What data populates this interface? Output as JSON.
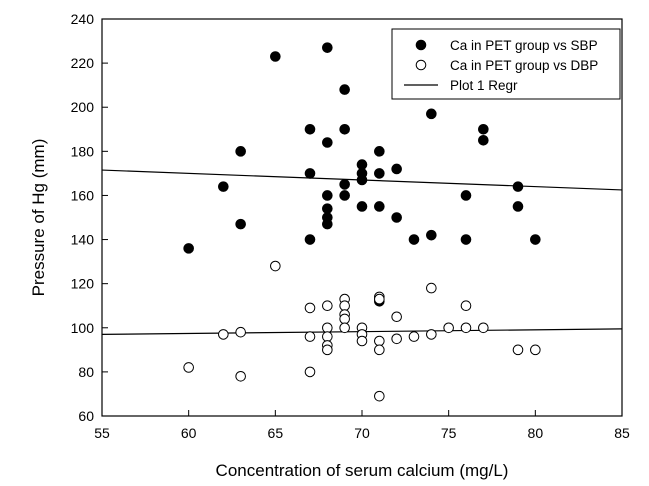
{
  "chart_data": {
    "type": "scatter",
    "title": "",
    "xlabel": "Concentration of serum calcium (mg/L)",
    "ylabel": "Pressure of Hg (mm)",
    "xlim": [
      55,
      85
    ],
    "ylim": [
      60,
      240
    ],
    "xticks": [
      55,
      60,
      65,
      70,
      75,
      80,
      85
    ],
    "yticks": [
      60,
      80,
      100,
      120,
      140,
      160,
      180,
      200,
      220,
      240
    ],
    "grid": false,
    "legend_position": "top-right",
    "series": [
      {
        "name": "Ca in PET group vs SBP",
        "marker": "filled-circle",
        "color": "#000000",
        "points": [
          [
            60,
            136
          ],
          [
            62,
            164
          ],
          [
            63,
            147
          ],
          [
            63,
            180
          ],
          [
            65,
            223
          ],
          [
            67,
            140
          ],
          [
            67,
            170
          ],
          [
            67,
            190
          ],
          [
            68,
            227
          ],
          [
            68,
            184
          ],
          [
            68,
            160
          ],
          [
            68,
            154
          ],
          [
            68,
            150
          ],
          [
            68,
            147
          ],
          [
            69,
            208
          ],
          [
            69,
            190
          ],
          [
            69,
            165
          ],
          [
            69,
            160
          ],
          [
            70,
            174
          ],
          [
            70,
            170
          ],
          [
            70,
            167
          ],
          [
            70,
            155
          ],
          [
            71,
            180
          ],
          [
            71,
            170
          ],
          [
            71,
            155
          ],
          [
            71,
            112
          ],
          [
            72,
            172
          ],
          [
            72,
            150
          ],
          [
            73,
            140
          ],
          [
            74,
            197
          ],
          [
            74,
            142
          ],
          [
            76,
            160
          ],
          [
            76,
            140
          ],
          [
            77,
            190
          ],
          [
            77,
            185
          ],
          [
            79,
            164
          ],
          [
            79,
            155
          ],
          [
            80,
            140
          ]
        ]
      },
      {
        "name": "Ca in PET group vs DBP",
        "marker": "open-circle",
        "color": "#000000",
        "points": [
          [
            60,
            82
          ],
          [
            62,
            97
          ],
          [
            63,
            98
          ],
          [
            63,
            78
          ],
          [
            65,
            128
          ],
          [
            67,
            109
          ],
          [
            67,
            96
          ],
          [
            67,
            80
          ],
          [
            68,
            110
          ],
          [
            68,
            100
          ],
          [
            68,
            96
          ],
          [
            68,
            92
          ],
          [
            68,
            90
          ],
          [
            69,
            113
          ],
          [
            69,
            110
          ],
          [
            69,
            106
          ],
          [
            69,
            104
          ],
          [
            69,
            100
          ],
          [
            70,
            100
          ],
          [
            70,
            97
          ],
          [
            70,
            94
          ],
          [
            71,
            114
          ],
          [
            71,
            113
          ],
          [
            71,
            94
          ],
          [
            71,
            90
          ],
          [
            71,
            69
          ],
          [
            72,
            105
          ],
          [
            72,
            95
          ],
          [
            73,
            96
          ],
          [
            74,
            118
          ],
          [
            74,
            97
          ],
          [
            75,
            100
          ],
          [
            76,
            110
          ],
          [
            76,
            100
          ],
          [
            77,
            100
          ],
          [
            79,
            90
          ],
          [
            80,
            90
          ]
        ]
      },
      {
        "name": "Plot 1 Regr",
        "marker": "line",
        "color": "#000000",
        "lines": [
          [
            [
              55,
              171.5
            ],
            [
              85,
              162.5
            ]
          ],
          [
            [
              55,
              97
            ],
            [
              85,
              99.5
            ]
          ]
        ]
      }
    ]
  }
}
